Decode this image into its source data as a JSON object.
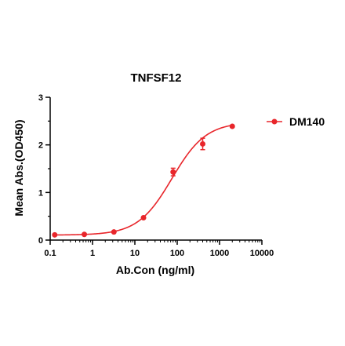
{
  "chart_data": {
    "type": "scatter",
    "title": "TNFSF12",
    "xlabel": "Ab.Con (ng/ml)",
    "ylabel": "Mean Abs.(OD450)",
    "xscale": "log",
    "xlim": [
      0.1,
      10000
    ],
    "ylim": [
      0,
      3
    ],
    "xticks": [
      0.1,
      1,
      10,
      100,
      1000,
      10000
    ],
    "xtick_labels": [
      "0.1",
      "1",
      "10",
      "100",
      "1000",
      "10000"
    ],
    "yticks": [
      0,
      1,
      2,
      3
    ],
    "ytick_labels": [
      "0",
      "1",
      "2",
      "3"
    ],
    "legend_position": "top-right",
    "color": "#e8262b",
    "series": [
      {
        "name": "DM140",
        "x": [
          0.128,
          0.64,
          3.2,
          16,
          80,
          400,
          2000
        ],
        "y": [
          0.11,
          0.12,
          0.17,
          0.47,
          1.43,
          2.02,
          2.39
        ],
        "error": [
          0.01,
          0.01,
          0.01,
          0.02,
          0.08,
          0.12,
          0.02
        ],
        "fit": "4PL sigmoid"
      }
    ]
  }
}
